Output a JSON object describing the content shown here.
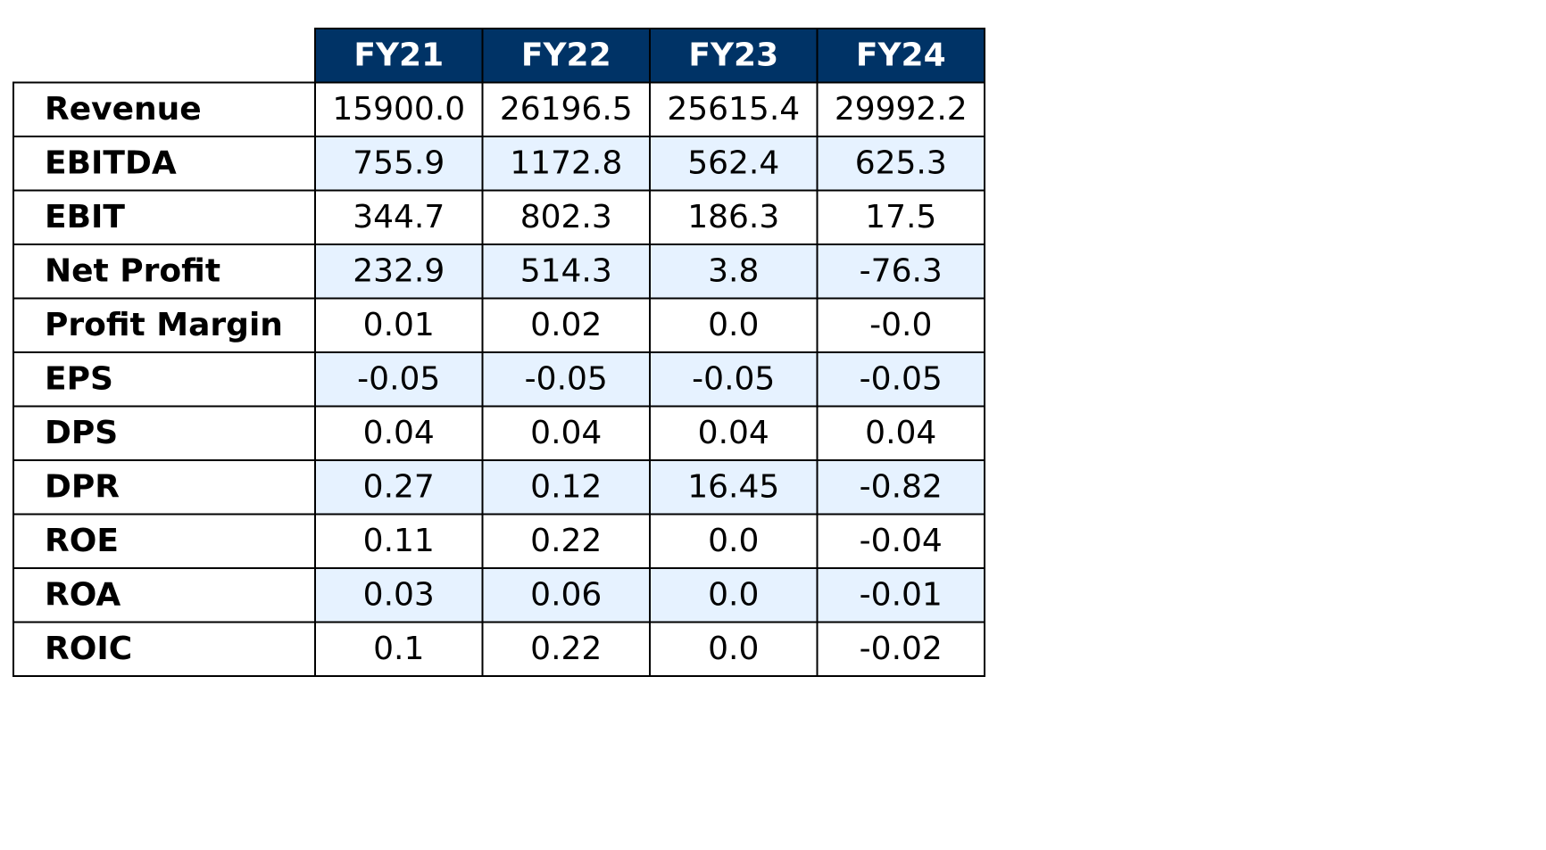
{
  "chart_data": {
    "type": "table",
    "columns": [
      "FY21",
      "FY22",
      "FY23",
      "FY24"
    ],
    "rows": [
      {
        "label": "Revenue",
        "values": [
          "15900.0",
          "26196.5",
          "25615.4",
          "29992.2"
        ]
      },
      {
        "label": "EBITDA",
        "values": [
          "755.9",
          "1172.8",
          "562.4",
          "625.3"
        ]
      },
      {
        "label": "EBIT",
        "values": [
          "344.7",
          "802.3",
          "186.3",
          "17.5"
        ]
      },
      {
        "label": "Net Profit",
        "values": [
          "232.9",
          "514.3",
          "3.8",
          "-76.3"
        ]
      },
      {
        "label": "Profit Margin",
        "values": [
          "0.01",
          "0.02",
          "0.0",
          "-0.0"
        ]
      },
      {
        "label": "EPS",
        "values": [
          "-0.05",
          "-0.05",
          "-0.05",
          "-0.05"
        ]
      },
      {
        "label": "DPS",
        "values": [
          "0.04",
          "0.04",
          "0.04",
          "0.04"
        ]
      },
      {
        "label": "DPR",
        "values": [
          "0.27",
          "0.12",
          "16.45",
          "-0.82"
        ]
      },
      {
        "label": "ROE",
        "values": [
          "0.11",
          "0.22",
          "0.0",
          "-0.04"
        ]
      },
      {
        "label": "ROA",
        "values": [
          "0.03",
          "0.06",
          "0.0",
          "-0.01"
        ]
      },
      {
        "label": "ROIC",
        "values": [
          "0.1",
          "0.22",
          "0.0",
          "-0.02"
        ]
      }
    ]
  },
  "colors": {
    "header_background": "#003366",
    "header_text": "#ffffff",
    "alternate_row_background": "#e6f2ff",
    "row_background": "#ffffff",
    "border": "#000000"
  }
}
